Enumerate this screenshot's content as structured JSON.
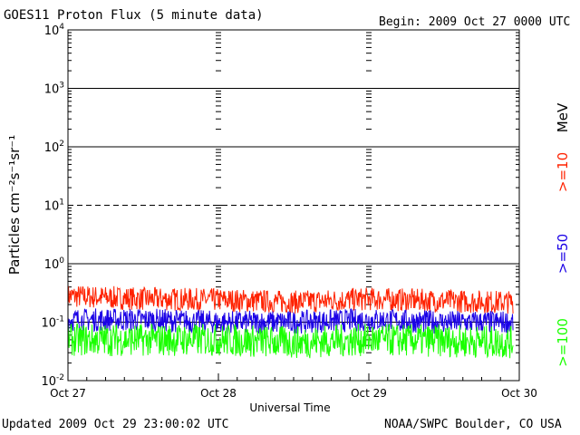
{
  "header": {
    "title": "GOES11 Proton Flux (5 minute data)",
    "begin": "Begin: 2009 Oct 27 0000 UTC"
  },
  "footer": {
    "updated": "Updated 2009 Oct 29 23:00:02 UTC",
    "source": "NOAA/SWPC Boulder, CO USA"
  },
  "chart_data": {
    "type": "line",
    "title": "GOES11 Proton Flux (5 minute data)",
    "xlabel": "Universal Time",
    "ylabel": "Particles cm⁻²s⁻¹sr⁻¹",
    "yscale": "log",
    "ylim": [
      0.01,
      10000
    ],
    "y_ticks": [
      {
        "value": 0.01,
        "base": "10",
        "exp": "-2"
      },
      {
        "value": 0.1,
        "base": "10",
        "exp": "-1"
      },
      {
        "value": 1,
        "base": "10",
        "exp": "0"
      },
      {
        "value": 10,
        "base": "10",
        "exp": "1"
      },
      {
        "value": 100,
        "base": "10",
        "exp": "2"
      },
      {
        "value": 1000,
        "base": "10",
        "exp": "3"
      },
      {
        "value": 10000,
        "base": "10",
        "exp": "4"
      }
    ],
    "x_ticks": [
      "Oct 27",
      "Oct 28",
      "Oct 29",
      "Oct 30"
    ],
    "xlim": [
      "2009-10-27",
      "2009-10-30"
    ],
    "unit_label": "MeV",
    "series": [
      {
        "name": ">=10",
        "color": "#ff2200",
        "x": [
          "2009-10-27T00",
          "2009-10-27T12",
          "2009-10-28T00",
          "2009-10-28T12",
          "2009-10-29T00",
          "2009-10-29T12",
          "2009-10-29T23"
        ],
        "values": [
          0.28,
          0.25,
          0.24,
          0.22,
          0.25,
          0.23,
          0.22
        ]
      },
      {
        "name": ">=50",
        "color": "#1a00e6",
        "x": [
          "2009-10-27T00",
          "2009-10-27T12",
          "2009-10-28T00",
          "2009-10-28T12",
          "2009-10-29T00",
          "2009-10-29T12",
          "2009-10-29T23"
        ],
        "values": [
          0.11,
          0.11,
          0.1,
          0.1,
          0.11,
          0.1,
          0.1
        ]
      },
      {
        "name": ">=100",
        "color": "#1aff00",
        "x": [
          "2009-10-27T00",
          "2009-10-27T12",
          "2009-10-28T00",
          "2009-10-28T12",
          "2009-10-29T00",
          "2009-10-29T12",
          "2009-10-29T23"
        ],
        "values": [
          0.05,
          0.05,
          0.05,
          0.045,
          0.05,
          0.048,
          0.045
        ]
      }
    ]
  }
}
